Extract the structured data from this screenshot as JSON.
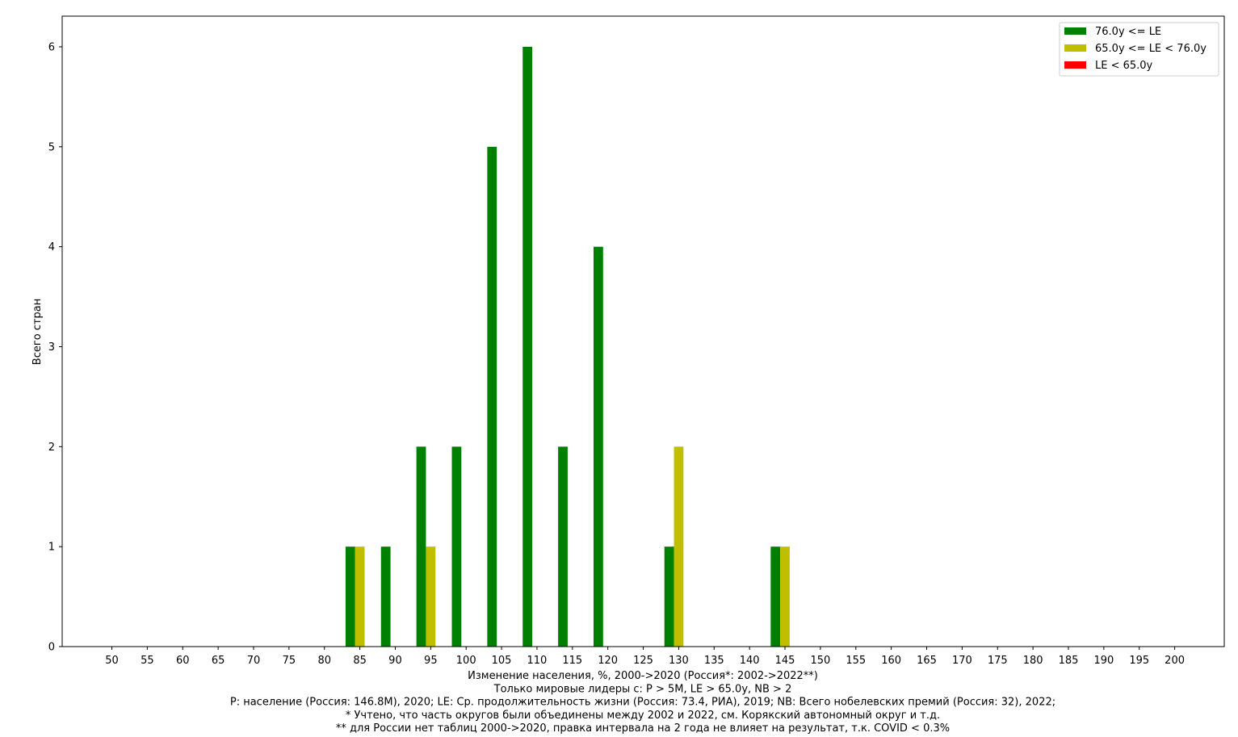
{
  "chart_data": {
    "type": "bar",
    "ylabel": "Всего стран",
    "xlabel_lines": [
      "Изменение населения, %, 2000->2020 (Россия*: 2002->2022**)",
      "Только мировые лидеры с:  P > 5M, LE > 65.0y, NB > 2",
      "P: население (Россия: 146.8M), 2020; LE: Ср. продолжительность жизни (Россия: 73.4, РИА), 2019; NB: Всего нобелевских премий (Россия: 32), 2022;",
      "* Учтено, что часть округов были объединены между 2002 и 2022, см. Корякский автономный округ и т.д.",
      "** для России нет таблиц 2000->2020, правка интервала на 2 года не влияет на результат, т.к. COVID < 0.3%"
    ],
    "categories": [
      "50",
      "55",
      "60",
      "65",
      "70",
      "75",
      "80",
      "85",
      "90",
      "95",
      "100",
      "105",
      "110",
      "115",
      "120",
      "125",
      "130",
      "135",
      "140",
      "145",
      "150",
      "155",
      "160",
      "165",
      "170",
      "175",
      "180",
      "185",
      "190",
      "195",
      "200"
    ],
    "y_ticks": [
      "0",
      "1",
      "2",
      "3",
      "4",
      "5",
      "6"
    ],
    "ylim": [
      0,
      6.3
    ],
    "legend_position": "top-right",
    "grid": false,
    "series": [
      {
        "name": "76.0y <= LE",
        "color": "#008000",
        "values": [
          0,
          0,
          0,
          0,
          0,
          0,
          0,
          1,
          1,
          2,
          2,
          5,
          6,
          2,
          4,
          0,
          1,
          0,
          0,
          1,
          0,
          0,
          0,
          0,
          0,
          0,
          0,
          0,
          0,
          0,
          0
        ]
      },
      {
        "name": "65.0y <= LE < 76.0y",
        "color": "#bfbf00",
        "values": [
          0,
          0,
          0,
          0,
          0,
          0,
          0,
          1,
          0,
          1,
          0,
          0,
          0,
          0,
          0,
          0,
          2,
          0,
          0,
          1,
          0,
          0,
          0,
          0,
          0,
          0,
          0,
          0,
          0,
          0,
          0
        ]
      },
      {
        "name": "LE < 65.0y",
        "color": "#ff0000",
        "values": [
          0,
          0,
          0,
          0,
          0,
          0,
          0,
          0,
          0,
          0,
          0,
          0,
          0,
          0,
          0,
          0,
          0,
          0,
          0,
          0,
          0,
          0,
          0,
          0,
          0,
          0,
          0,
          0,
          0,
          0,
          0
        ]
      }
    ]
  }
}
